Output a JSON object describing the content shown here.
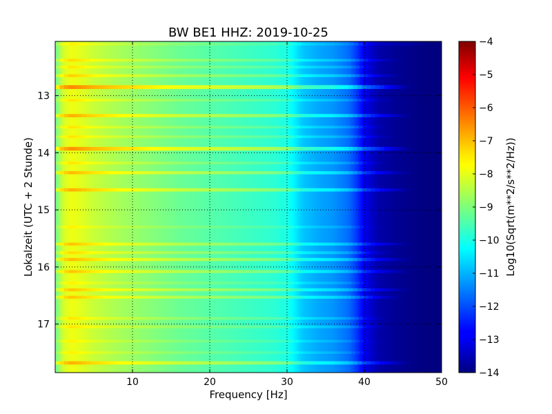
{
  "chart_data": {
    "type": "heatmap",
    "title": "BW BE1 HHZ: 2019-10-25",
    "xlabel": "Frequency [Hz]",
    "ylabel": "Lokalzeit (UTC + 2 Stunde)",
    "xlim": [
      0,
      50
    ],
    "ylim": [
      12.05,
      17.85
    ],
    "x_ticks": [
      10,
      20,
      30,
      40,
      50
    ],
    "y_ticks": [
      13,
      14,
      15,
      16,
      17
    ],
    "grid": true,
    "colormap": "jet",
    "colorbar": {
      "label": "Log10(Sqrt(m**2/s**2/Hz))",
      "range": [
        -14,
        -4
      ],
      "ticks": [
        -4,
        -5,
        -6,
        -7,
        -8,
        -9,
        -10,
        -11,
        -12,
        -13,
        -14
      ]
    },
    "spectrum_profile": {
      "frequency_hz": [
        0,
        1,
        2,
        3,
        5,
        8,
        12,
        16,
        20,
        24,
        28,
        30,
        31,
        32,
        34,
        36,
        38,
        39,
        40,
        41,
        42,
        44,
        46,
        48,
        50
      ],
      "level": [
        -9.2,
        -8.2,
        -7.9,
        -8.0,
        -8.3,
        -8.6,
        -8.9,
        -9.2,
        -9.4,
        -9.6,
        -9.8,
        -10.0,
        -10.4,
        -10.8,
        -11.1,
        -11.3,
        -11.7,
        -12.2,
        -12.9,
        -13.3,
        -13.6,
        -13.8,
        -13.9,
        -14.0,
        -14.0
      ]
    },
    "bands": [
      {
        "time": 12.1,
        "level": 0.3,
        "fmax": 49
      },
      {
        "time": 12.38,
        "level": 0.5,
        "fmax": 45
      },
      {
        "time": 12.5,
        "level": 0.4,
        "fmax": 42
      },
      {
        "time": 12.65,
        "level": 0.6,
        "fmax": 45
      },
      {
        "time": 12.85,
        "level": 1.3,
        "fmax": 46
      },
      {
        "time": 13.08,
        "level": 0.4,
        "fmax": 44
      },
      {
        "time": 13.35,
        "level": 0.9,
        "fmax": 46
      },
      {
        "time": 13.55,
        "level": 0.4,
        "fmax": 43
      },
      {
        "time": 13.72,
        "level": 0.4,
        "fmax": 44
      },
      {
        "time": 13.93,
        "level": 1.2,
        "fmax": 46
      },
      {
        "time": 14.18,
        "level": 0.4,
        "fmax": 43
      },
      {
        "time": 14.35,
        "level": 0.8,
        "fmax": 46
      },
      {
        "time": 14.65,
        "level": 0.9,
        "fmax": 46
      },
      {
        "time": 15.3,
        "level": 0.3,
        "fmax": 42
      },
      {
        "time": 15.6,
        "level": 0.7,
        "fmax": 46
      },
      {
        "time": 15.75,
        "level": 0.5,
        "fmax": 44
      },
      {
        "time": 15.87,
        "level": 0.8,
        "fmax": 46
      },
      {
        "time": 16.08,
        "level": 0.7,
        "fmax": 46
      },
      {
        "time": 16.28,
        "level": 0.3,
        "fmax": 42
      },
      {
        "time": 16.4,
        "level": 0.7,
        "fmax": 46
      },
      {
        "time": 16.53,
        "level": 0.7,
        "fmax": 45
      },
      {
        "time": 16.9,
        "level": 0.4,
        "fmax": 43
      },
      {
        "time": 17.05,
        "level": 0.4,
        "fmax": 43
      },
      {
        "time": 17.3,
        "level": 0.3,
        "fmax": 42
      },
      {
        "time": 17.5,
        "level": 0.3,
        "fmax": 42
      },
      {
        "time": 17.68,
        "level": 0.9,
        "fmax": 46
      }
    ]
  }
}
